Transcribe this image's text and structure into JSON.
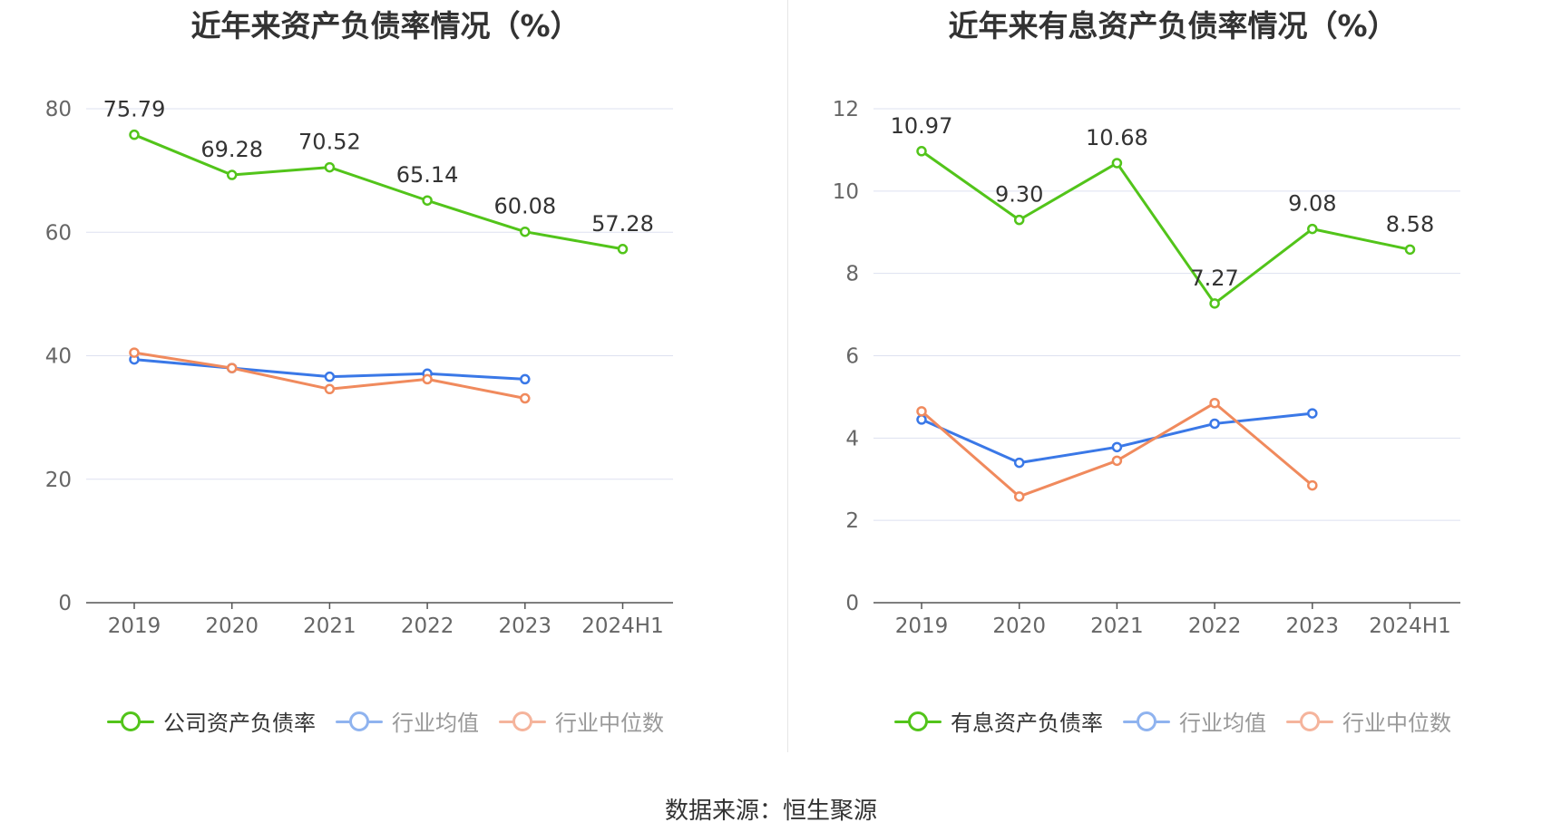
{
  "source_label": "数据来源：恒生聚源",
  "colors": {
    "company": "#52c41a",
    "avg": "#3a78e7",
    "median": "#f08a5d",
    "avg_legend": "#8fb3ef",
    "median_legend": "#f5b49c",
    "grid": "#dde1f0",
    "axis": "#555555"
  },
  "chart_data": [
    {
      "type": "line",
      "title": "近年来资产负债率情况（%）",
      "categories": [
        "2019",
        "2020",
        "2021",
        "2022",
        "2023",
        "2024H1"
      ],
      "ylim": [
        0,
        80
      ],
      "yticks": [
        0,
        20,
        40,
        60,
        80
      ],
      "ytick_labels": [
        "0",
        "20",
        "40",
        "60",
        "80"
      ],
      "series": [
        {
          "name": "公司资产负债率",
          "key": "company",
          "values": [
            75.79,
            69.28,
            70.52,
            65.14,
            60.08,
            57.28
          ],
          "labels": [
            "75.79",
            "69.28",
            "70.52",
            "65.14",
            "60.08",
            "57.28"
          ]
        },
        {
          "name": "行业均值",
          "key": "avg",
          "values": [
            39.4,
            38.0,
            36.6,
            37.1,
            36.2,
            null
          ]
        },
        {
          "name": "行业中位数",
          "key": "median",
          "values": [
            40.5,
            38.0,
            34.6,
            36.2,
            33.1,
            null
          ]
        }
      ]
    },
    {
      "type": "line",
      "title": "近年来有息资产负债率情况（%）",
      "categories": [
        "2019",
        "2020",
        "2021",
        "2022",
        "2023",
        "2024H1"
      ],
      "ylim": [
        0,
        12
      ],
      "yticks": [
        0,
        2,
        4,
        6,
        8,
        10,
        12
      ],
      "ytick_labels": [
        "0",
        "2",
        "4",
        "6",
        "8",
        "10",
        "12"
      ],
      "series": [
        {
          "name": "有息资产负债率",
          "key": "company",
          "values": [
            10.97,
            9.3,
            10.68,
            7.27,
            9.08,
            8.58
          ],
          "labels": [
            "10.97",
            "9.30",
            "10.68",
            "7.27",
            "9.08",
            "8.58"
          ]
        },
        {
          "name": "行业均值",
          "key": "avg",
          "values": [
            4.45,
            3.4,
            3.78,
            4.35,
            4.6,
            null
          ]
        },
        {
          "name": "行业中位数",
          "key": "median",
          "values": [
            4.65,
            2.58,
            3.45,
            4.85,
            2.85,
            null
          ]
        }
      ]
    }
  ]
}
